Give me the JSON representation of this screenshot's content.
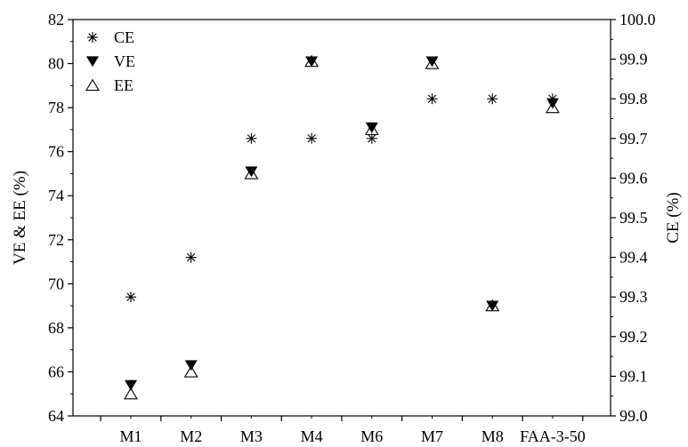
{
  "chart_data": {
    "type": "scatter",
    "categories": [
      "M1",
      "M2",
      "M3",
      "M4",
      "M6",
      "M7",
      "M8",
      "FAA-3-50"
    ],
    "ylabel_left": "VE & EE (%)",
    "ylabel_right": "CE (%)",
    "xlabel": "",
    "ylim_left": [
      64,
      82
    ],
    "ylim_right": [
      99.0,
      100.0
    ],
    "yticks_left": [
      "64",
      "66",
      "68",
      "70",
      "72",
      "74",
      "76",
      "78",
      "80",
      "82"
    ],
    "yticks_right": [
      "99.0",
      "99.1",
      "99.2",
      "99.3",
      "99.4",
      "99.5",
      "99.6",
      "99.7",
      "99.8",
      "99.9",
      "100.0"
    ],
    "legend_position": "top-left",
    "grid": false,
    "series": [
      {
        "name": "CE",
        "axis": "right",
        "marker": "asterisk",
        "values": [
          99.3,
          99.4,
          99.7,
          99.7,
          99.7,
          99.8,
          99.8,
          99.8
        ]
      },
      {
        "name": "VE",
        "axis": "left",
        "marker": "filled-down-triangle",
        "values": [
          65.4,
          66.3,
          75.1,
          80.1,
          77.1,
          80.1,
          69.0,
          78.2
        ]
      },
      {
        "name": "EE",
        "axis": "left",
        "marker": "open-up-triangle",
        "values": [
          65.0,
          66.0,
          75.0,
          80.1,
          77.0,
          80.0,
          69.0,
          78.0
        ]
      }
    ]
  }
}
